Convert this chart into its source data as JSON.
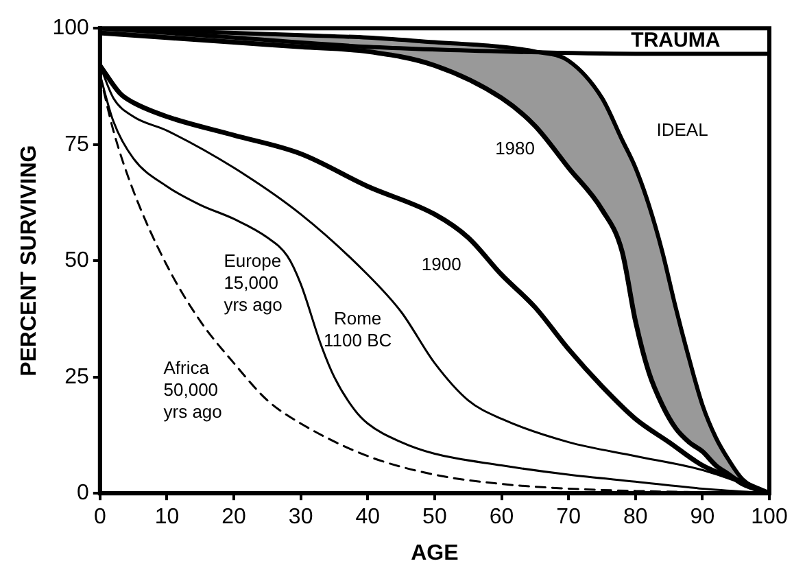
{
  "chart_data": {
    "type": "line",
    "xlabel": "AGE",
    "ylabel": "PERCENT SURVIVING",
    "xlim": [
      0,
      100
    ],
    "xticks": [
      0,
      10,
      20,
      30,
      40,
      50,
      60,
      70,
      80,
      90,
      100
    ],
    "ylim": [
      0,
      100
    ],
    "yticks": [
      0,
      25,
      50,
      75,
      100
    ],
    "grid": false,
    "legend": false,
    "marker": "none",
    "series": [
      {
        "name": "TRAUMA",
        "color": "#000000",
        "line_style": "solid",
        "x": [
          0,
          20,
          40,
          60,
          80,
          100
        ],
        "values": [
          100,
          98,
          96,
          95,
          94.5,
          94.5
        ]
      },
      {
        "name": "IDEAL",
        "color": "#000000",
        "line_style": "solid",
        "x": [
          0,
          10,
          20,
          30,
          40,
          50,
          60,
          65,
          70,
          75,
          78,
          80,
          82,
          84,
          86,
          88,
          90,
          92,
          94,
          96,
          100
        ],
        "values": [
          100,
          99.5,
          99,
          98.5,
          98,
          97,
          96,
          95,
          93,
          85,
          76,
          70,
          62,
          52,
          40,
          29,
          19,
          12,
          7,
          3,
          0
        ],
        "upper": [
          100,
          99.5,
          99,
          98.5,
          98,
          97,
          96,
          95,
          93,
          85,
          76,
          70,
          62,
          52,
          40,
          29,
          19,
          12,
          7,
          3,
          0
        ],
        "lower": [
          99,
          98,
          97,
          96,
          95,
          92,
          85,
          79,
          70,
          61,
          52,
          37,
          26,
          19,
          14,
          11,
          9,
          6,
          4,
          2,
          0
        ]
      },
      {
        "name": "1980",
        "color": "#000000",
        "line_style": "solid",
        "x": [
          0,
          10,
          20,
          30,
          40,
          50,
          60,
          65,
          70,
          75,
          78,
          80,
          82,
          84,
          86,
          88,
          90,
          92,
          94,
          96,
          100
        ],
        "values": [
          99,
          98,
          97,
          96,
          95,
          92,
          85,
          79,
          70,
          61,
          52,
          37,
          26,
          19,
          14,
          11,
          9,
          6,
          4,
          2,
          0
        ]
      },
      {
        "name": "1900",
        "color": "#000000",
        "line_style": "solid",
        "x": [
          0,
          3,
          5,
          10,
          20,
          30,
          40,
          50,
          55,
          60,
          65,
          70,
          75,
          80,
          85,
          90,
          95,
          100
        ],
        "values": [
          92,
          86,
          84,
          81,
          77,
          73,
          66,
          60,
          55,
          47,
          40,
          31,
          23,
          16,
          11,
          6,
          3,
          0
        ]
      },
      {
        "name": "Rome 1100 BC",
        "color": "#000000",
        "line_style": "solid",
        "x": [
          0,
          2,
          5,
          10,
          20,
          30,
          40,
          45,
          50,
          55,
          60,
          70,
          80,
          90,
          100
        ],
        "values": [
          92,
          85,
          81,
          78,
          70,
          60,
          47,
          39,
          28,
          20,
          16,
          11,
          8,
          5,
          0
        ]
      },
      {
        "name": "Europe 15,000 yrs ago",
        "color": "#000000",
        "line_style": "solid",
        "x": [
          0,
          2,
          5,
          10,
          15,
          20,
          25,
          28,
          30,
          33,
          35,
          38,
          40,
          45,
          50,
          60,
          70,
          80,
          90,
          100
        ],
        "values": [
          90,
          80,
          72,
          66,
          62,
          59,
          55,
          51,
          45,
          32,
          25,
          18,
          15,
          11,
          8.5,
          6,
          4,
          2.5,
          1,
          0
        ]
      },
      {
        "name": "Africa 50,000 yrs ago",
        "color": "#000000",
        "line_style": "dashed",
        "x": [
          0,
          2,
          5,
          10,
          15,
          20,
          25,
          30,
          40,
          50,
          60,
          70,
          80,
          100
        ],
        "values": [
          90,
          78,
          65,
          49,
          37,
          28,
          20,
          15,
          8,
          4,
          2,
          1,
          0.5,
          0
        ]
      }
    ]
  }
}
